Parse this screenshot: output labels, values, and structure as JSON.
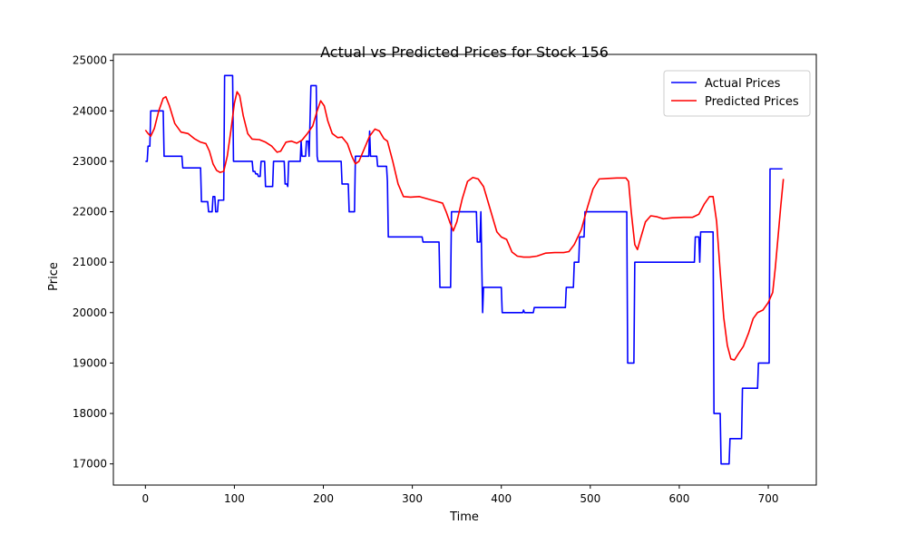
{
  "chart_data": {
    "type": "line",
    "title": "Actual vs Predicted Prices for Stock 156",
    "xlabel": "Time",
    "ylabel": "Price",
    "xlim": [
      -36,
      754
    ],
    "ylim": [
      16580,
      25120
    ],
    "xticks": [
      0,
      100,
      200,
      300,
      400,
      500,
      600,
      700
    ],
    "yticks": [
      17000,
      18000,
      19000,
      20000,
      21000,
      22000,
      23000,
      24000,
      25000
    ],
    "grid": false,
    "legend": "top-right",
    "series": [
      {
        "name": "Actual Prices",
        "color": "#0000ff",
        "points": [
          [
            0,
            23000
          ],
          [
            2,
            23000
          ],
          [
            3,
            23300
          ],
          [
            5,
            23300
          ],
          [
            6,
            24000
          ],
          [
            20,
            24000
          ],
          [
            21,
            23100
          ],
          [
            41,
            23100
          ],
          [
            42,
            22870
          ],
          [
            62,
            22870
          ],
          [
            63,
            22200
          ],
          [
            70,
            22200
          ],
          [
            71,
            22000
          ],
          [
            75,
            22000
          ],
          [
            76,
            22300
          ],
          [
            78,
            22300
          ],
          [
            79,
            22000
          ],
          [
            81,
            22000
          ],
          [
            82,
            22230
          ],
          [
            88,
            22230
          ],
          [
            89,
            24700
          ],
          [
            98,
            24700
          ],
          [
            99,
            23000
          ],
          [
            120,
            23000
          ],
          [
            121,
            22800
          ],
          [
            123,
            22800
          ],
          [
            124,
            22750
          ],
          [
            126,
            22750
          ],
          [
            127,
            22700
          ],
          [
            129,
            22700
          ],
          [
            130,
            23000
          ],
          [
            134,
            23000
          ],
          [
            135,
            22500
          ],
          [
            143,
            22500
          ],
          [
            144,
            23000
          ],
          [
            156,
            23000
          ],
          [
            157,
            22550
          ],
          [
            159,
            22550
          ],
          [
            160,
            22500
          ],
          [
            161,
            23000
          ],
          [
            174,
            23000
          ],
          [
            175,
            23400
          ],
          [
            176,
            23100
          ],
          [
            180,
            23100
          ],
          [
            181,
            23400
          ],
          [
            183,
            23400
          ],
          [
            184,
            23100
          ],
          [
            186,
            24500
          ],
          [
            192,
            24500
          ],
          [
            193,
            23100
          ],
          [
            194,
            23000
          ],
          [
            220,
            23000
          ],
          [
            221,
            22550
          ],
          [
            228,
            22550
          ],
          [
            229,
            22000
          ],
          [
            235,
            22000
          ],
          [
            236,
            23100
          ],
          [
            251,
            23100
          ],
          [
            252,
            23600
          ],
          [
            253,
            23100
          ],
          [
            260,
            23100
          ],
          [
            261,
            22900
          ],
          [
            271,
            22900
          ],
          [
            272,
            22600
          ],
          [
            273,
            21500
          ],
          [
            311,
            21500
          ],
          [
            312,
            21400
          ],
          [
            330,
            21400
          ],
          [
            331,
            20500
          ],
          [
            343,
            20500
          ],
          [
            344,
            22000
          ],
          [
            372,
            22000
          ],
          [
            373,
            21400
          ],
          [
            376,
            21400
          ],
          [
            377,
            22000
          ],
          [
            379,
            20000
          ],
          [
            380,
            20500
          ],
          [
            400,
            20500
          ],
          [
            401,
            20000
          ],
          [
            424,
            20000
          ],
          [
            425,
            20050
          ],
          [
            426,
            20000
          ],
          [
            436,
            20000
          ],
          [
            437,
            20100
          ],
          [
            472,
            20100
          ],
          [
            473,
            20500
          ],
          [
            481,
            20500
          ],
          [
            482,
            21000
          ],
          [
            487,
            21000
          ],
          [
            488,
            21500
          ],
          [
            493,
            21500
          ],
          [
            494,
            22000
          ],
          [
            541,
            22000
          ],
          [
            542,
            19000
          ],
          [
            549,
            19000
          ],
          [
            550,
            21000
          ],
          [
            617,
            21000
          ],
          [
            618,
            21500
          ],
          [
            622,
            21500
          ],
          [
            623,
            21000
          ],
          [
            624,
            21600
          ],
          [
            638,
            21600
          ],
          [
            639,
            18000
          ],
          [
            646,
            18000
          ],
          [
            647,
            17000
          ],
          [
            656,
            17000
          ],
          [
            657,
            17500
          ],
          [
            670,
            17500
          ],
          [
            671,
            18500
          ],
          [
            688,
            18500
          ],
          [
            689,
            19000
          ],
          [
            701,
            19000
          ],
          [
            702,
            22850
          ],
          [
            716,
            22850
          ]
        ]
      },
      {
        "name": "Predicted Prices",
        "color": "#ff0000",
        "points": [
          [
            0,
            23620
          ],
          [
            3,
            23550
          ],
          [
            6,
            23500
          ],
          [
            10,
            23650
          ],
          [
            15,
            24000
          ],
          [
            20,
            24250
          ],
          [
            23,
            24280
          ],
          [
            27,
            24100
          ],
          [
            33,
            23750
          ],
          [
            40,
            23580
          ],
          [
            48,
            23550
          ],
          [
            55,
            23450
          ],
          [
            62,
            23380
          ],
          [
            68,
            23350
          ],
          [
            72,
            23200
          ],
          [
            76,
            22950
          ],
          [
            80,
            22820
          ],
          [
            84,
            22780
          ],
          [
            88,
            22800
          ],
          [
            92,
            23100
          ],
          [
            96,
            23600
          ],
          [
            100,
            24150
          ],
          [
            103,
            24380
          ],
          [
            106,
            24300
          ],
          [
            110,
            23900
          ],
          [
            115,
            23550
          ],
          [
            120,
            23440
          ],
          [
            128,
            23430
          ],
          [
            135,
            23380
          ],
          [
            142,
            23300
          ],
          [
            148,
            23180
          ],
          [
            152,
            23200
          ],
          [
            158,
            23380
          ],
          [
            164,
            23400
          ],
          [
            170,
            23360
          ],
          [
            176,
            23420
          ],
          [
            182,
            23550
          ],
          [
            188,
            23700
          ],
          [
            193,
            24000
          ],
          [
            197,
            24200
          ],
          [
            201,
            24100
          ],
          [
            205,
            23800
          ],
          [
            210,
            23550
          ],
          [
            216,
            23470
          ],
          [
            221,
            23480
          ],
          [
            227,
            23350
          ],
          [
            232,
            23100
          ],
          [
            236,
            22950
          ],
          [
            240,
            23000
          ],
          [
            246,
            23250
          ],
          [
            252,
            23500
          ],
          [
            258,
            23640
          ],
          [
            263,
            23600
          ],
          [
            268,
            23450
          ],
          [
            272,
            23400
          ],
          [
            278,
            23000
          ],
          [
            284,
            22550
          ],
          [
            290,
            22300
          ],
          [
            298,
            22290
          ],
          [
            308,
            22300
          ],
          [
            318,
            22250
          ],
          [
            328,
            22200
          ],
          [
            334,
            22170
          ],
          [
            338,
            22000
          ],
          [
            342,
            21800
          ],
          [
            346,
            21620
          ],
          [
            350,
            21800
          ],
          [
            356,
            22250
          ],
          [
            362,
            22600
          ],
          [
            368,
            22680
          ],
          [
            374,
            22650
          ],
          [
            380,
            22500
          ],
          [
            385,
            22200
          ],
          [
            390,
            21900
          ],
          [
            395,
            21600
          ],
          [
            400,
            21500
          ],
          [
            406,
            21450
          ],
          [
            412,
            21200
          ],
          [
            418,
            21120
          ],
          [
            425,
            21100
          ],
          [
            432,
            21100
          ],
          [
            440,
            21120
          ],
          [
            450,
            21180
          ],
          [
            460,
            21190
          ],
          [
            470,
            21190
          ],
          [
            476,
            21210
          ],
          [
            482,
            21350
          ],
          [
            490,
            21650
          ],
          [
            497,
            22100
          ],
          [
            503,
            22450
          ],
          [
            510,
            22650
          ],
          [
            520,
            22660
          ],
          [
            530,
            22670
          ],
          [
            540,
            22670
          ],
          [
            543,
            22600
          ],
          [
            546,
            22000
          ],
          [
            550,
            21350
          ],
          [
            553,
            21250
          ],
          [
            557,
            21500
          ],
          [
            562,
            21800
          ],
          [
            568,
            21920
          ],
          [
            575,
            21900
          ],
          [
            582,
            21860
          ],
          [
            592,
            21880
          ],
          [
            605,
            21890
          ],
          [
            615,
            21890
          ],
          [
            622,
            21950
          ],
          [
            628,
            22150
          ],
          [
            634,
            22300
          ],
          [
            638,
            22300
          ],
          [
            642,
            21800
          ],
          [
            646,
            20800
          ],
          [
            650,
            19900
          ],
          [
            654,
            19350
          ],
          [
            658,
            19080
          ],
          [
            662,
            19060
          ],
          [
            667,
            19200
          ],
          [
            672,
            19330
          ],
          [
            678,
            19600
          ],
          [
            683,
            19880
          ],
          [
            688,
            20000
          ],
          [
            694,
            20050
          ],
          [
            700,
            20200
          ],
          [
            705,
            20400
          ],
          [
            708,
            20900
          ],
          [
            711,
            21500
          ],
          [
            714,
            22100
          ],
          [
            717,
            22650
          ]
        ]
      }
    ]
  }
}
